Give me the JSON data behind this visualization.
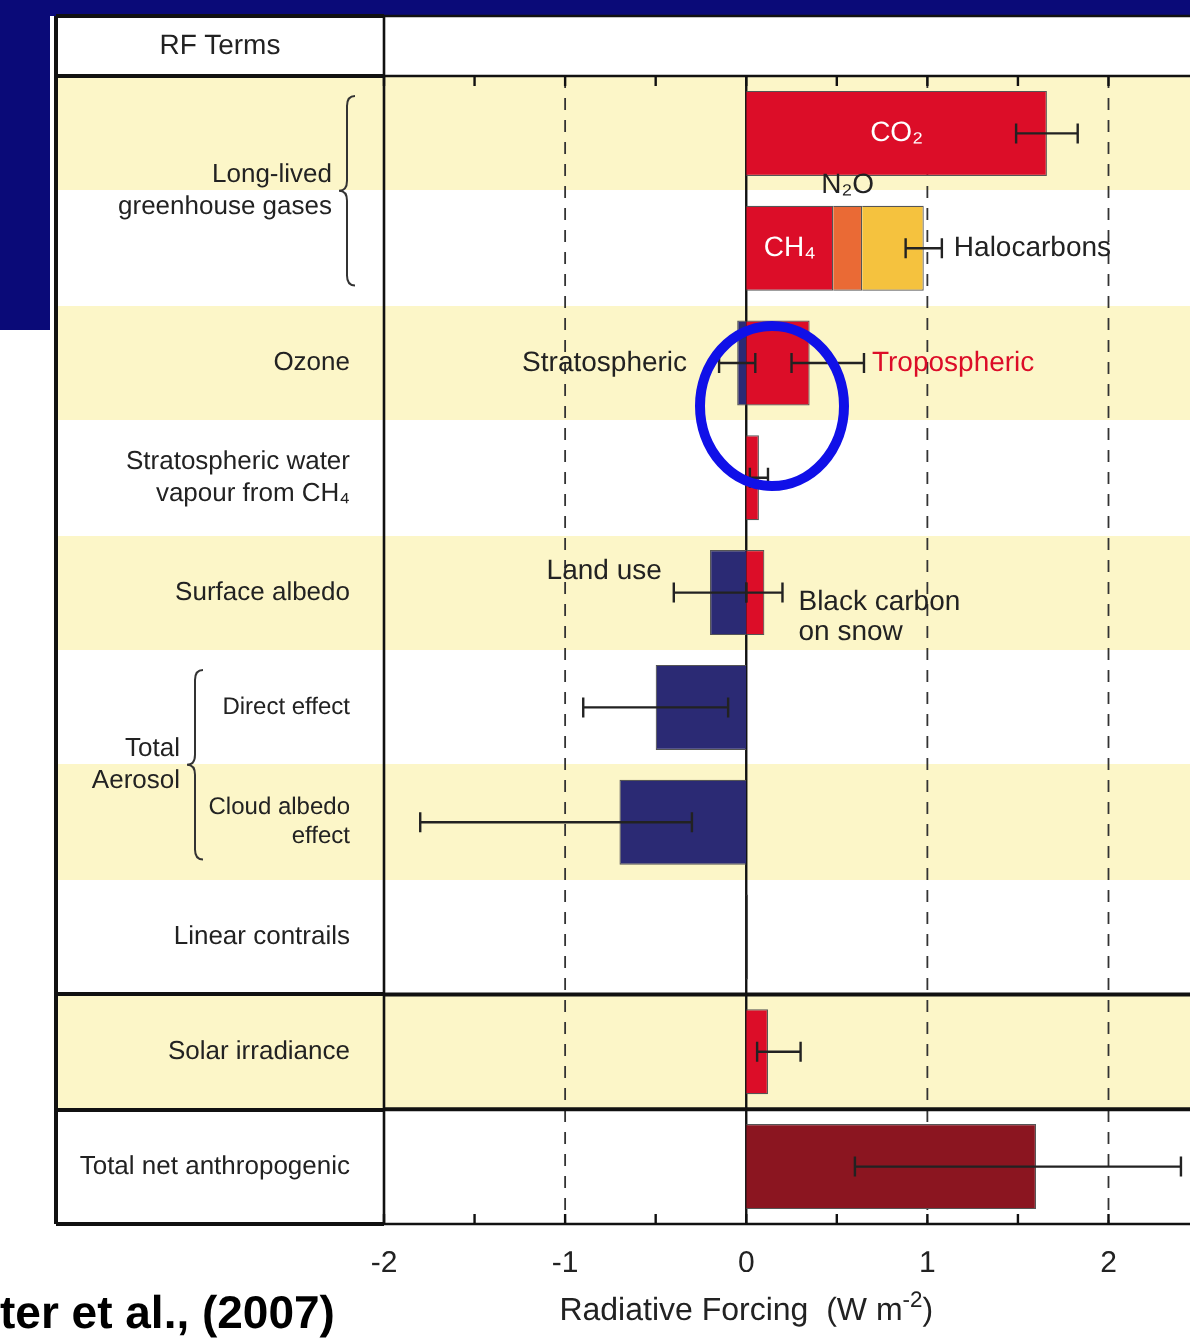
{
  "chart_data": {
    "type": "bar",
    "orientation": "horizontal",
    "stacked": true,
    "ylabel": "RF Terms",
    "xlabel": "Radiative Forcing  (W m$^{-2}$)",
    "categories": [
      null,
      null,
      "Ozone",
      "Stratospheric water vapour from CH₄",
      "Surface albedo",
      "Direct effect",
      "Cloud albedo effect",
      "Linear contrails",
      "Solar irradiance",
      "Total net anthropogenic"
    ],
    "series": [
      {
        "name": "CO₂",
        "color": "#dc0d28",
        "values": [
          1.66,
          null,
          null,
          null,
          null,
          null,
          null,
          null,
          null,
          null
        ],
        "errors": [
          [
            1.49,
            1.83
          ],
          null,
          null,
          null,
          null,
          null,
          null,
          null,
          null,
          null
        ]
      },
      {
        "name": "CH₄",
        "color": "#dc0d28",
        "values": [
          null,
          0.48,
          null,
          null,
          null,
          null,
          null,
          null,
          null,
          null
        ]
      },
      {
        "name": "N₂O",
        "color": "#ea6a35",
        "values": [
          null,
          0.16,
          null,
          null,
          null,
          null,
          null,
          null,
          null,
          null
        ]
      },
      {
        "name": "Halocarbons",
        "color": "#f5c23e",
        "values": [
          null,
          0.34,
          null,
          null,
          null,
          null,
          null,
          null,
          null,
          null
        ],
        "errors": [
          null,
          [
            0.88,
            1.08
          ],
          null,
          null,
          null,
          null,
          null,
          null,
          null,
          null
        ]
      },
      {
        "name": "Stratospheric",
        "color": "#2b2a74",
        "values": [
          null,
          null,
          -0.05,
          null,
          null,
          null,
          null,
          null,
          null,
          null
        ],
        "errors": [
          null,
          null,
          [
            -0.15,
            0.05
          ],
          null,
          null,
          null,
          null,
          null,
          null,
          null
        ]
      },
      {
        "name": "Tropospheric",
        "color": "#dc0d28",
        "values": [
          null,
          null,
          0.35,
          null,
          null,
          null,
          null,
          null,
          null,
          null
        ],
        "errors": [
          null,
          null,
          [
            0.25,
            0.65
          ],
          null,
          null,
          null,
          null,
          null,
          null,
          null
        ]
      },
      {
        "name": "Land use",
        "color": "#2b2a74",
        "values": [
          null,
          null,
          null,
          null,
          -0.2,
          null,
          null,
          null,
          null,
          null
        ],
        "errors": [
          null,
          null,
          null,
          null,
          [
            -0.4,
            0
          ],
          null,
          null,
          null,
          null,
          null
        ]
      },
      {
        "name": "Black carbon on snow",
        "color": "#dc0d28",
        "values": [
          null,
          null,
          null,
          null,
          0.1,
          null,
          null,
          null,
          null,
          null
        ],
        "errors": [
          null,
          null,
          null,
          null,
          [
            0,
            0.2
          ],
          null,
          null,
          null,
          null,
          null
        ]
      },
      {
        "colors": [
          null,
          null,
          null,
          "#dc0d28",
          null,
          "#2b2a74",
          "#2b2a74",
          "#222222",
          "#dc0d28",
          "#8b1520"
        ],
        "values": [
          null,
          null,
          null,
          0.07,
          null,
          -0.5,
          -0.7,
          0.01,
          0.12,
          1.6
        ],
        "errors": [
          null,
          null,
          null,
          [
            0.02,
            0.12
          ],
          null,
          [
            -0.9,
            -0.1
          ],
          [
            -1.8,
            -0.3
          ],
          null,
          [
            0.06,
            0.3
          ],
          [
            0.6,
            2.4
          ]
        ]
      }
    ],
    "xlim": [
      -2,
      2.45
    ],
    "xticks": [
      -2,
      {
        "value": -1.5,
        "label": null
      },
      -1,
      {
        "value": -0.5,
        "label": null
      },
      0,
      {
        "value": 0.5,
        "label": null
      },
      1,
      {
        "value": 1.5,
        "label": null
      },
      2
    ],
    "grid": "x",
    "annotations": [
      "Long-lived greenhouse gases",
      "Total Aerosol",
      "ter et al., (2007)"
    ]
  }
}
